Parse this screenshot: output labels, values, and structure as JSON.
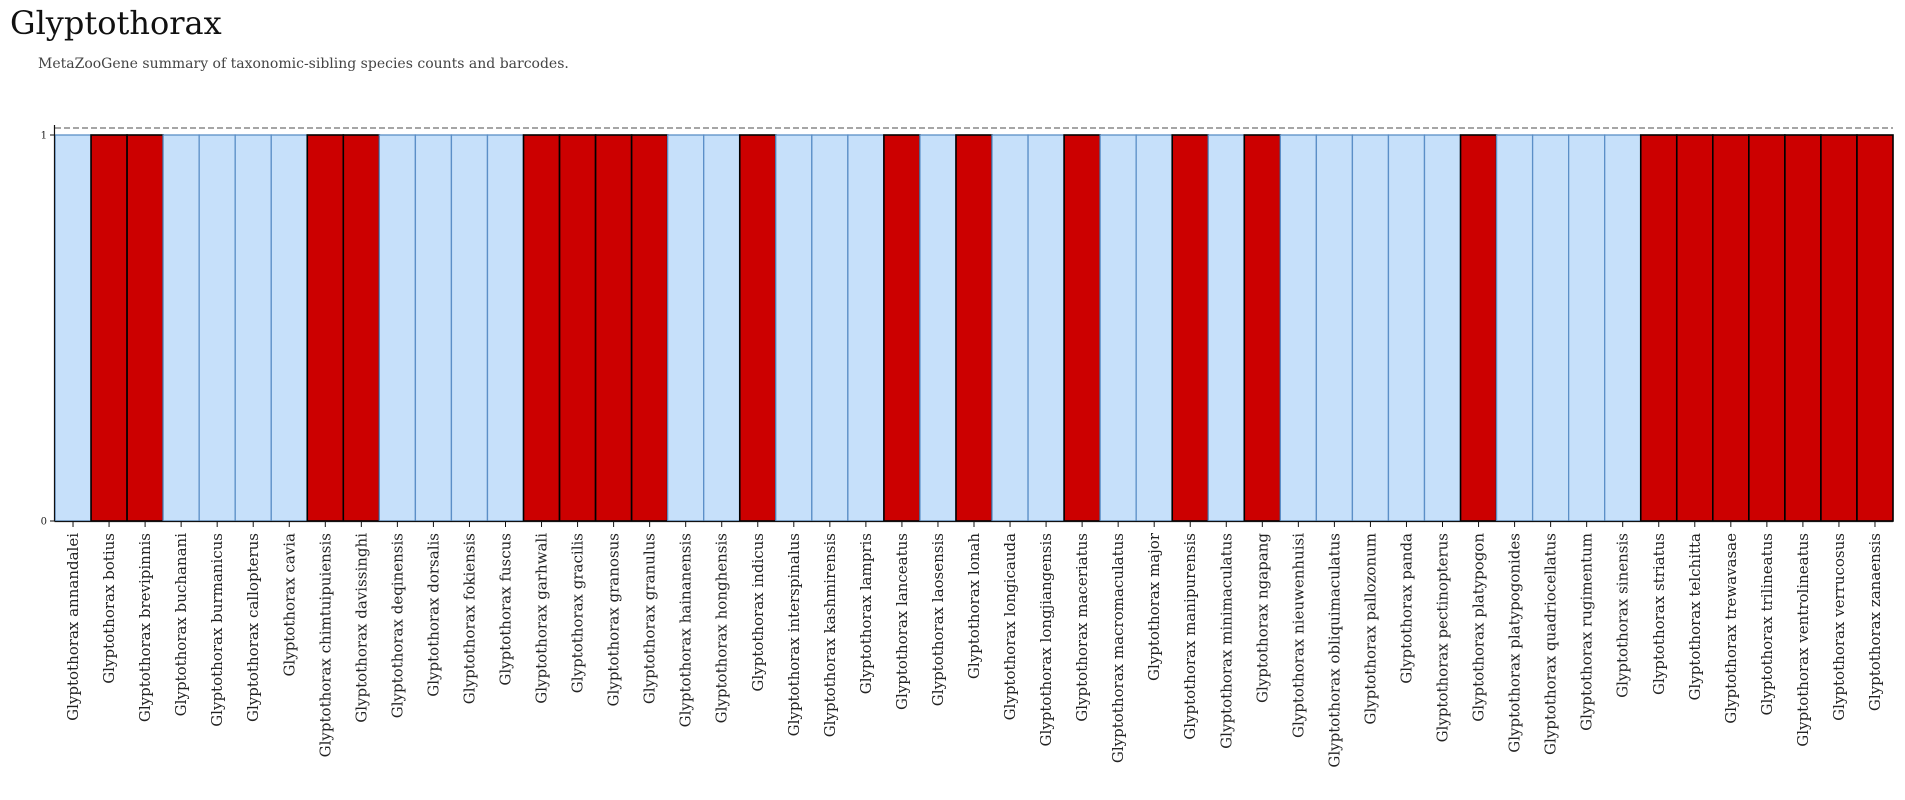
{
  "header": {
    "title": "Glyptothorax",
    "subtitle": "MetaZooGene summary of taxonomic-sibling species counts and barcodes."
  },
  "colors": {
    "barcoded": "#cc0000",
    "not_barcoded": "#c6e0fa",
    "not_barcoded_stroke": "#5b8fc7",
    "barcoded_stroke": "#000000"
  },
  "chart_data": {
    "type": "bar",
    "title": "",
    "xlabel": "",
    "ylabel": "",
    "ylim": [
      0,
      1
    ],
    "yticks": [
      "0",
      "1"
    ],
    "categories": [
      "Glyptothorax annandalei",
      "Glyptothorax botius",
      "Glyptothorax brevipinnis",
      "Glyptothorax buchanani",
      "Glyptothorax burmanicus",
      "Glyptothorax callopterus",
      "Glyptothorax cavia",
      "Glyptothorax chimtuipuiensis",
      "Glyptothorax davissinghi",
      "Glyptothorax deqinensis",
      "Glyptothorax dorsalis",
      "Glyptothorax fokiensis",
      "Glyptothorax fuscus",
      "Glyptothorax garhwali",
      "Glyptothorax gracilis",
      "Glyptothorax granosus",
      "Glyptothorax granulus",
      "Glyptothorax hainanensis",
      "Glyptothorax honghensis",
      "Glyptothorax indicus",
      "Glyptothorax interspinalus",
      "Glyptothorax kashmirensis",
      "Glyptothorax lampris",
      "Glyptothorax lanceatus",
      "Glyptothorax laosensis",
      "Glyptothorax lonah",
      "Glyptothorax longicauda",
      "Glyptothorax longjiangensis",
      "Glyptothorax maceriatus",
      "Glyptothorax macromaculatus",
      "Glyptothorax major",
      "Glyptothorax manipurensis",
      "Glyptothorax minimaculatus",
      "Glyptothorax ngapang",
      "Glyptothorax nieuwenhuisi",
      "Glyptothorax obliquimaculatus",
      "Glyptothorax pallozonum",
      "Glyptothorax panda",
      "Glyptothorax pectinopterus",
      "Glyptothorax platypogon",
      "Glyptothorax platypogonides",
      "Glyptothorax quadriocellatus",
      "Glyptothorax rugimentum",
      "Glyptothorax sinensis",
      "Glyptothorax striatus",
      "Glyptothorax telchitta",
      "Glyptothorax trewavasae",
      "Glyptothorax trilineatus",
      "Glyptothorax ventrolineatus",
      "Glyptothorax verrucosus",
      "Glyptothorax zanaensis"
    ],
    "values": [
      1,
      1,
      1,
      1,
      1,
      1,
      1,
      1,
      1,
      1,
      1,
      1,
      1,
      1,
      1,
      1,
      1,
      1,
      1,
      1,
      1,
      1,
      1,
      1,
      1,
      1,
      1,
      1,
      1,
      1,
      1,
      1,
      1,
      1,
      1,
      1,
      1,
      1,
      1,
      1,
      1,
      1,
      1,
      1,
      1,
      1,
      1,
      1,
      1,
      1,
      1
    ],
    "barcoded": [
      false,
      true,
      true,
      false,
      false,
      false,
      false,
      true,
      true,
      false,
      false,
      false,
      false,
      true,
      true,
      true,
      true,
      false,
      false,
      true,
      false,
      false,
      false,
      true,
      false,
      true,
      false,
      false,
      true,
      false,
      false,
      true,
      false,
      true,
      false,
      false,
      false,
      false,
      false,
      true,
      false,
      false,
      false,
      false,
      true,
      true,
      true,
      true,
      true,
      true,
      true
    ],
    "reference_line": 1,
    "grid": false,
    "legend": "none"
  }
}
